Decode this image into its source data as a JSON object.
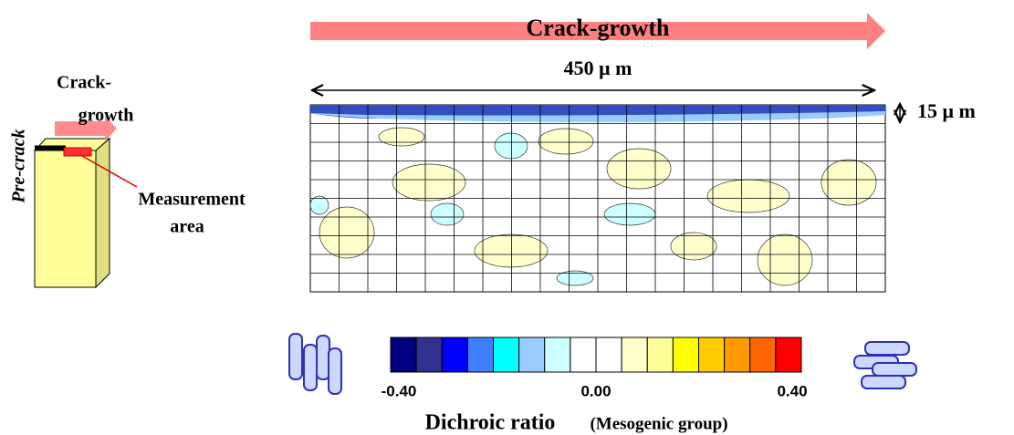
{
  "header": {
    "arrow_label": "Crack-growth",
    "width_label": "450 μ m",
    "depth_label": "15 μ m"
  },
  "specimen": {
    "growth_label": [
      "Crack-",
      "growth"
    ],
    "precrack_label": "Pre-crack",
    "measurement_label": [
      "Measurement",
      "area"
    ]
  },
  "colorbar": {
    "colors": [
      "#000080",
      "#303090",
      "#0000ff",
      "#3f7fff",
      "#00ffff",
      "#99ccff",
      "#ccffff",
      "#ffffff",
      "#ffffff",
      "#ffffcc",
      "#ffff99",
      "#ffff00",
      "#ffcc00",
      "#ff9900",
      "#ff6600",
      "#ff0000"
    ],
    "tick_labels": [
      "-0.40",
      "0.00",
      "0.40"
    ],
    "title": "Dichroic ratio",
    "subtitle": "(Mesogenic group)"
  }
}
